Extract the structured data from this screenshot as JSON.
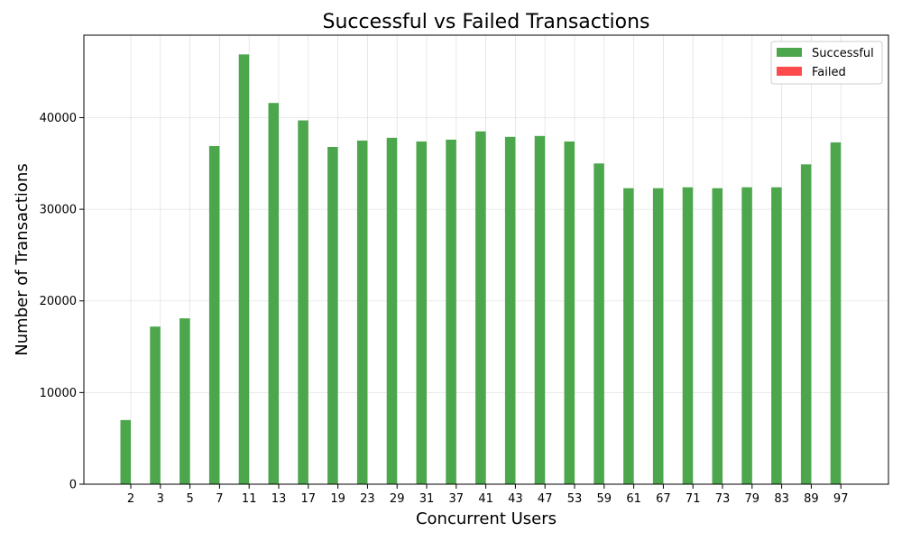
{
  "chart_data": {
    "type": "bar",
    "title": "Successful vs Failed Transactions",
    "xlabel": "Concurrent Users",
    "ylabel": "Number of Transactions",
    "categories": [
      "2",
      "3",
      "5",
      "7",
      "11",
      "13",
      "17",
      "19",
      "23",
      "29",
      "31",
      "37",
      "41",
      "43",
      "47",
      "53",
      "59",
      "61",
      "67",
      "71",
      "73",
      "79",
      "83",
      "89",
      "97"
    ],
    "series": [
      {
        "name": "Successful",
        "color": "#4ca64c",
        "values": [
          7000,
          17200,
          18100,
          36900,
          46900,
          41600,
          39700,
          36800,
          37500,
          37800,
          37400,
          37600,
          38500,
          37900,
          38000,
          37400,
          35000,
          32300,
          32300,
          32400,
          32300,
          32400,
          32400,
          34900,
          37300
        ]
      },
      {
        "name": "Failed",
        "color": "#ff4b4b",
        "values": [
          0,
          0,
          0,
          0,
          0,
          0,
          0,
          0,
          0,
          0,
          0,
          0,
          0,
          0,
          0,
          0,
          0,
          0,
          0,
          0,
          0,
          0,
          0,
          0,
          0
        ]
      }
    ],
    "ylim": [
      0,
      49000
    ],
    "yticks": [
      0,
      10000,
      20000,
      30000,
      40000
    ],
    "grid": true,
    "legend_position": "top-right"
  }
}
